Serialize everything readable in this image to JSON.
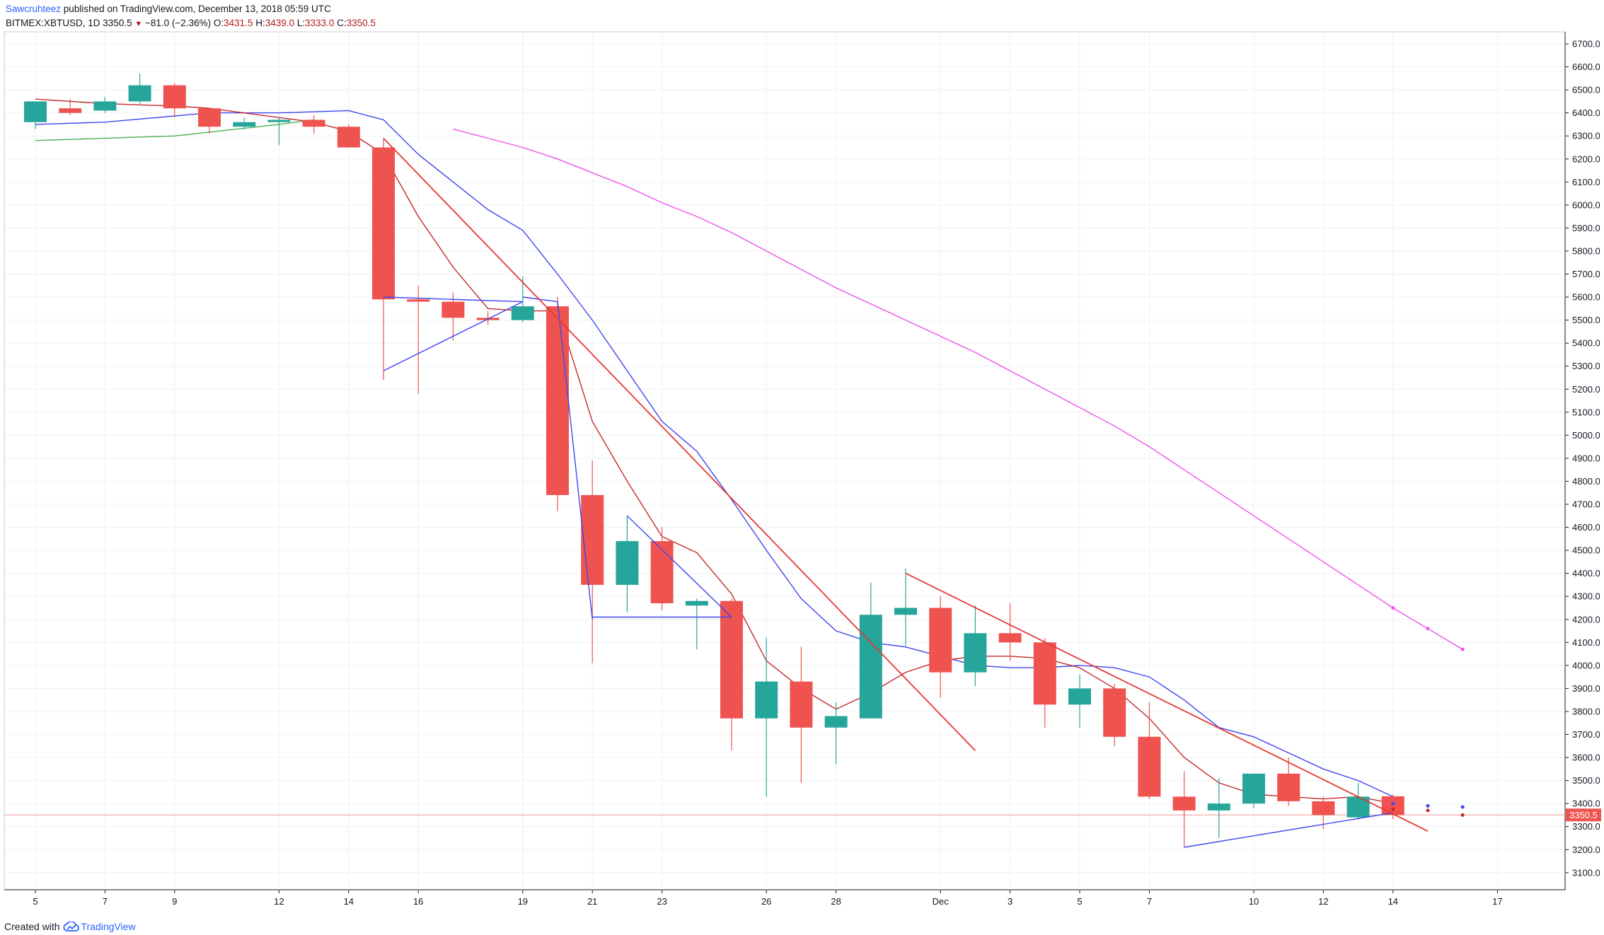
{
  "header": {
    "author": "Sawcruhteez",
    "published": " published on TradingView.com, December 13, 2018 05:59 UTC",
    "symbol": "BITMEX:XBTUSD, 1D",
    "last": "3350.5",
    "change": "−81.0 (−2.36%)",
    "o_label": "O:",
    "o_value": "3431.5",
    "h_label": "H:",
    "h_value": "3439.0",
    "l_label": "L:",
    "l_value": "3333.0",
    "c_label": "C:",
    "c_value": "3350.5"
  },
  "footer": {
    "created_with": "Created with",
    "brand": "TradingView",
    "logo_icon": "tradingview-cloud-icon"
  },
  "colors": {
    "up": "#26a69a",
    "down": "#ef5350",
    "ema_blue": "#3f46f0",
    "ma_red": "#c62828",
    "ma_magenta": "#f050f0",
    "ma_green": "#4caf50",
    "trend_red": "#e53935",
    "price_line": "#ef9a9a",
    "grid": "#eef0f3",
    "axis_text": "#131722"
  },
  "chart_data": {
    "type": "candlestick",
    "symbol": "BITMEX:XBTUSD",
    "interval": "1D",
    "grid": true,
    "y_axis_position": "right",
    "ylim": [
      3000,
      6750
    ],
    "y_ticks": [
      3100,
      3200,
      3300,
      3400,
      3500,
      3600,
      3700,
      3800,
      3900,
      4000,
      4100,
      4200,
      4300,
      4400,
      4500,
      4600,
      4700,
      4800,
      4900,
      5000,
      5100,
      5200,
      5300,
      5400,
      5500,
      5600,
      5700,
      5800,
      5900,
      6000,
      6100,
      6200,
      6300,
      6400,
      6500,
      6600,
      6700
    ],
    "current_price_label": "3350.5",
    "x_ticks": [
      {
        "i": 0,
        "label": "5"
      },
      {
        "i": 2,
        "label": "7"
      },
      {
        "i": 4,
        "label": "9"
      },
      {
        "i": 7,
        "label": "12"
      },
      {
        "i": 9,
        "label": "14"
      },
      {
        "i": 11,
        "label": "16"
      },
      {
        "i": 14,
        "label": "19"
      },
      {
        "i": 16,
        "label": "21"
      },
      {
        "i": 18,
        "label": "23"
      },
      {
        "i": 21,
        "label": "26"
      },
      {
        "i": 23,
        "label": "28"
      },
      {
        "i": 26,
        "label": "Dec"
      },
      {
        "i": 28,
        "label": "3"
      },
      {
        "i": 30,
        "label": "5"
      },
      {
        "i": 32,
        "label": "7"
      },
      {
        "i": 35,
        "label": "10"
      },
      {
        "i": 37,
        "label": "12"
      },
      {
        "i": 39,
        "label": "14"
      },
      {
        "i": 42,
        "label": "17"
      }
    ],
    "candles": [
      {
        "i": 0,
        "o": 6360,
        "h": 6450,
        "l": 6330,
        "c": 6450
      },
      {
        "i": 1,
        "o": 6420,
        "h": 6460,
        "l": 6390,
        "c": 6400
      },
      {
        "i": 2,
        "o": 6410,
        "h": 6470,
        "l": 6400,
        "c": 6450
      },
      {
        "i": 3,
        "o": 6450,
        "h": 6570,
        "l": 6440,
        "c": 6520
      },
      {
        "i": 4,
        "o": 6520,
        "h": 6530,
        "l": 6380,
        "c": 6420
      },
      {
        "i": 5,
        "o": 6420,
        "h": 6420,
        "l": 6310,
        "c": 6340
      },
      {
        "i": 6,
        "o": 6340,
        "h": 6380,
        "l": 6330,
        "c": 6360
      },
      {
        "i": 7,
        "o": 6360,
        "h": 6380,
        "l": 6260,
        "c": 6370
      },
      {
        "i": 8,
        "o": 6370,
        "h": 6390,
        "l": 6310,
        "c": 6340
      },
      {
        "i": 9,
        "o": 6340,
        "h": 6350,
        "l": 6250,
        "c": 6250
      },
      {
        "i": 10,
        "o": 6250,
        "h": 6290,
        "l": 5240,
        "c": 5590
      },
      {
        "i": 11,
        "o": 5590,
        "h": 5650,
        "l": 5180,
        "c": 5580
      },
      {
        "i": 12,
        "o": 5580,
        "h": 5620,
        "l": 5410,
        "c": 5510
      },
      {
        "i": 13,
        "o": 5510,
        "h": 5540,
        "l": 5480,
        "c": 5500
      },
      {
        "i": 14,
        "o": 5500,
        "h": 5690,
        "l": 5490,
        "c": 5560
      },
      {
        "i": 15,
        "o": 5560,
        "h": 5600,
        "l": 4670,
        "c": 4740
      },
      {
        "i": 16,
        "o": 4740,
        "h": 4890,
        "l": 4010,
        "c": 4350
      },
      {
        "i": 17,
        "o": 4350,
        "h": 4650,
        "l": 4230,
        "c": 4540
      },
      {
        "i": 18,
        "o": 4540,
        "h": 4600,
        "l": 4240,
        "c": 4270
      },
      {
        "i": 19,
        "o": 4260,
        "h": 4290,
        "l": 4070,
        "c": 4280
      },
      {
        "i": 20,
        "o": 4280,
        "h": 4290,
        "l": 3630,
        "c": 3770
      },
      {
        "i": 21,
        "o": 3770,
        "h": 4120,
        "l": 3430,
        "c": 3930
      },
      {
        "i": 22,
        "o": 3930,
        "h": 4080,
        "l": 3490,
        "c": 3730
      },
      {
        "i": 23,
        "o": 3730,
        "h": 3840,
        "l": 3570,
        "c": 3780
      },
      {
        "i": 24,
        "o": 3770,
        "h": 4360,
        "l": 3770,
        "c": 4220
      },
      {
        "i": 25,
        "o": 4220,
        "h": 4420,
        "l": 4080,
        "c": 4250
      },
      {
        "i": 26,
        "o": 4250,
        "h": 4300,
        "l": 3860,
        "c": 3970
      },
      {
        "i": 27,
        "o": 3970,
        "h": 4260,
        "l": 3910,
        "c": 4140
      },
      {
        "i": 28,
        "o": 4140,
        "h": 4270,
        "l": 4020,
        "c": 4100
      },
      {
        "i": 29,
        "o": 4100,
        "h": 4120,
        "l": 3730,
        "c": 3830
      },
      {
        "i": 30,
        "o": 3830,
        "h": 3960,
        "l": 3730,
        "c": 3900
      },
      {
        "i": 31,
        "o": 3900,
        "h": 3920,
        "l": 3650,
        "c": 3690
      },
      {
        "i": 32,
        "o": 3690,
        "h": 3840,
        "l": 3420,
        "c": 3430
      },
      {
        "i": 33,
        "o": 3430,
        "h": 3540,
        "l": 3210,
        "c": 3370
      },
      {
        "i": 34,
        "o": 3370,
        "h": 3510,
        "l": 3250,
        "c": 3400
      },
      {
        "i": 35,
        "o": 3400,
        "h": 3530,
        "l": 3380,
        "c": 3530
      },
      {
        "i": 36,
        "o": 3530,
        "h": 3600,
        "l": 3390,
        "c": 3410
      },
      {
        "i": 37,
        "o": 3410,
        "h": 3430,
        "l": 3290,
        "c": 3350
      },
      {
        "i": 38,
        "o": 3340,
        "h": 3490,
        "l": 3330,
        "c": 3430
      },
      {
        "i": 39,
        "o": 3431.5,
        "h": 3439,
        "l": 3333,
        "c": 3350.5
      }
    ],
    "series": [
      {
        "role": "blue-ma",
        "points": [
          [
            0,
            6350
          ],
          [
            2,
            6360
          ],
          [
            5,
            6400
          ],
          [
            7,
            6400
          ],
          [
            9,
            6410
          ],
          [
            10,
            6370
          ],
          [
            11,
            6220
          ],
          [
            12,
            6100
          ],
          [
            13,
            5980
          ],
          [
            14,
            5890
          ],
          [
            15,
            5700
          ],
          [
            16,
            5500
          ],
          [
            17,
            5280
          ],
          [
            18,
            5060
          ],
          [
            19,
            4930
          ],
          [
            20,
            4720
          ],
          [
            21,
            4500
          ],
          [
            22,
            4290
          ],
          [
            23,
            4150
          ],
          [
            24,
            4100
          ],
          [
            25,
            4080
          ],
          [
            26,
            4040
          ],
          [
            27,
            4000
          ],
          [
            28,
            3990
          ],
          [
            29,
            3990
          ],
          [
            30,
            4000
          ],
          [
            31,
            3990
          ],
          [
            32,
            3950
          ],
          [
            33,
            3850
          ],
          [
            34,
            3730
          ],
          [
            35,
            3690
          ],
          [
            36,
            3620
          ],
          [
            37,
            3550
          ],
          [
            38,
            3500
          ],
          [
            39,
            3430
          ]
        ]
      },
      {
        "role": "red-ma",
        "points": [
          [
            0,
            6460
          ],
          [
            2,
            6440
          ],
          [
            4,
            6430
          ],
          [
            5,
            6420
          ],
          [
            7,
            6380
          ],
          [
            8,
            6360
          ],
          [
            9,
            6320
          ],
          [
            10,
            6220
          ],
          [
            11,
            5950
          ],
          [
            12,
            5730
          ],
          [
            13,
            5550
          ],
          [
            14,
            5540
          ],
          [
            15,
            5540
          ],
          [
            16,
            5060
          ],
          [
            17,
            4800
          ],
          [
            18,
            4560
          ],
          [
            19,
            4490
          ],
          [
            20,
            4310
          ],
          [
            21,
            4020
          ],
          [
            22,
            3900
          ],
          [
            23,
            3810
          ],
          [
            24,
            3880
          ],
          [
            25,
            3970
          ],
          [
            26,
            4020
          ],
          [
            27,
            4040
          ],
          [
            28,
            4040
          ],
          [
            29,
            4030
          ],
          [
            30,
            3990
          ],
          [
            31,
            3900
          ],
          [
            32,
            3770
          ],
          [
            33,
            3600
          ],
          [
            34,
            3490
          ],
          [
            35,
            3440
          ],
          [
            36,
            3430
          ],
          [
            37,
            3420
          ],
          [
            38,
            3430
          ],
          [
            39,
            3400
          ]
        ]
      },
      {
        "role": "magenta-ma",
        "points": [
          [
            12,
            6330
          ],
          [
            13,
            6290
          ],
          [
            14,
            6250
          ],
          [
            15,
            6200
          ],
          [
            16,
            6140
          ],
          [
            17,
            6080
          ],
          [
            18,
            6010
          ],
          [
            19,
            5950
          ],
          [
            20,
            5880
          ],
          [
            21,
            5800
          ],
          [
            22,
            5720
          ],
          [
            23,
            5640
          ],
          [
            24,
            5570
          ],
          [
            25,
            5500
          ],
          [
            26,
            5430
          ],
          [
            27,
            5360
          ],
          [
            28,
            5280
          ],
          [
            29,
            5200
          ],
          [
            30,
            5120
          ],
          [
            31,
            5040
          ],
          [
            32,
            4950
          ],
          [
            33,
            4850
          ],
          [
            34,
            4750
          ],
          [
            35,
            4650
          ],
          [
            36,
            4550
          ],
          [
            37,
            4450
          ],
          [
            38,
            4350
          ],
          [
            39,
            4250
          ],
          [
            40,
            4160
          ],
          [
            41,
            4070
          ]
        ]
      },
      {
        "role": "green-ma",
        "points": [
          [
            0,
            6280
          ],
          [
            4,
            6300
          ],
          [
            7,
            6350
          ],
          [
            8,
            6370
          ]
        ]
      }
    ],
    "projected_markers": [
      {
        "i": 39,
        "v": 4250,
        "role": "magenta"
      },
      {
        "i": 40,
        "v": 4160,
        "role": "magenta"
      },
      {
        "i": 41,
        "v": 4070,
        "role": "magenta"
      },
      {
        "i": 39,
        "v": 3400,
        "role": "blue"
      },
      {
        "i": 40,
        "v": 3390,
        "role": "blue"
      },
      {
        "i": 41,
        "v": 3385,
        "role": "blue"
      },
      {
        "i": 39,
        "v": 3375,
        "role": "red"
      },
      {
        "i": 40,
        "v": 3370,
        "role": "red"
      },
      {
        "i": 41,
        "v": 3350,
        "role": "red"
      }
    ],
    "drawings": [
      {
        "role": "blue",
        "points": [
          [
            10,
            5280
          ],
          [
            14,
            5580
          ]
        ]
      },
      {
        "role": "blue",
        "points": [
          [
            10,
            5600
          ],
          [
            14,
            5580
          ]
        ]
      },
      {
        "role": "blue",
        "points": [
          [
            14,
            5600
          ],
          [
            15,
            5580
          ]
        ]
      },
      {
        "role": "blue",
        "points": [
          [
            15,
            5580
          ],
          [
            16,
            4200
          ]
        ]
      },
      {
        "role": "blue",
        "points": [
          [
            16,
            4210
          ],
          [
            20,
            4210
          ]
        ]
      },
      {
        "role": "blue",
        "points": [
          [
            17,
            4650
          ],
          [
            20,
            4210
          ]
        ]
      },
      {
        "role": "blue",
        "points": [
          [
            33,
            3210
          ],
          [
            39,
            3360
          ]
        ]
      },
      {
        "role": "trend",
        "points": [
          [
            10,
            6290
          ],
          [
            27,
            3630
          ]
        ]
      },
      {
        "role": "trend",
        "points": [
          [
            25,
            4400
          ],
          [
            40,
            3280
          ]
        ]
      }
    ]
  }
}
